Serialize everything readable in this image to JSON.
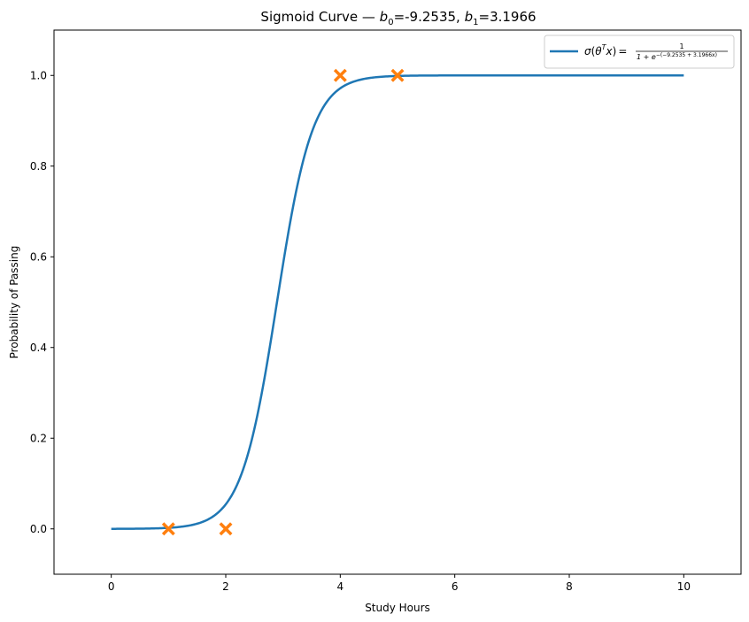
{
  "chart_data": {
    "type": "line",
    "title": {
      "prefix": "Sigmoid Curve — ",
      "b0_symbol": "b",
      "b0_sub": "0",
      "b0_value": "=-9.2535, ",
      "b1_symbol": "b",
      "b1_sub": "1",
      "b1_value": "=3.1966"
    },
    "xlabel": "Study Hours",
    "ylabel": "Probability of Passing",
    "xlim": [
      -1,
      11
    ],
    "ylim": [
      -0.1,
      1.1
    ],
    "xticks": [
      0,
      2,
      4,
      6,
      8,
      10
    ],
    "yticks": [
      0.0,
      0.2,
      0.4,
      0.6,
      0.8,
      1.0
    ],
    "xtick_labels": [
      "0",
      "2",
      "4",
      "6",
      "8",
      "10"
    ],
    "ytick_labels": [
      "0.0",
      "0.2",
      "0.4",
      "0.6",
      "0.8",
      "1.0"
    ],
    "grid": false,
    "legend_position": "top-right",
    "series": [
      {
        "name": "σ(θ^T x) = 1 / (1 + e^−(−9.2535 + 3.1966x))",
        "kind": "curve",
        "function": "sigmoid",
        "b0": -9.2535,
        "b1": 3.1966,
        "x_range": [
          0,
          10
        ],
        "color": "#1f77b4"
      },
      {
        "kind": "scatter",
        "marker": "X",
        "color": "#ff7f0e",
        "x": [
          1,
          2,
          4,
          5
        ],
        "y": [
          0,
          0,
          1,
          1
        ]
      }
    ],
    "legend": {
      "lhs_sigma": "σ",
      "lhs_open": "(",
      "lhs_theta": "θ",
      "lhs_T": "T",
      "lhs_x": "x",
      "lhs_close": ")",
      "equals": "=",
      "numerator": "1",
      "denominator_base": "1 + e",
      "denominator_exp": "−(−9.2535 + 3.1966x)"
    }
  }
}
